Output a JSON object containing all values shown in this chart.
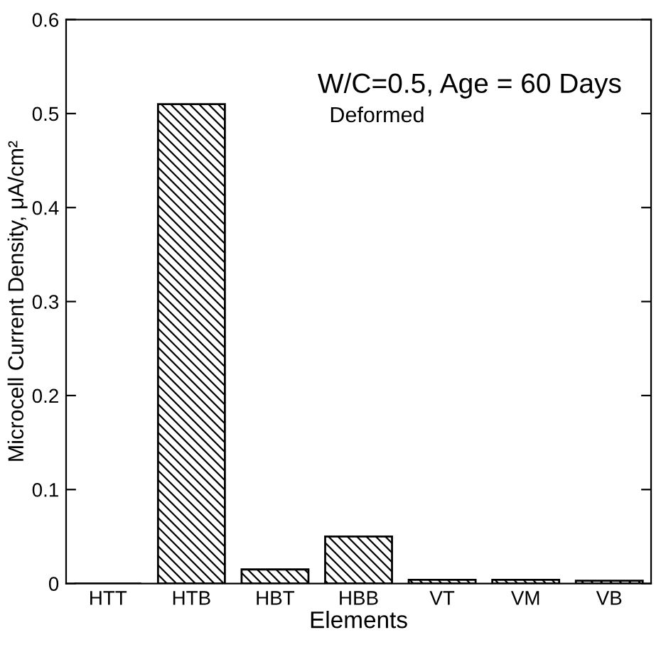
{
  "chart_data": {
    "type": "bar",
    "xlabel": "Elements",
    "ylabel": "Microcell Current Density, μA/cm²",
    "annotations": [
      "W/C=0.5, Age = 60 Days",
      "Deformed"
    ],
    "categories": [
      "HTT",
      "HTB",
      "HBT",
      "HBB",
      "VT",
      "VM",
      "VB"
    ],
    "series": [
      {
        "color": "#000000",
        "values": [
          0,
          0.51,
          0.015,
          0.05,
          0.004,
          0.004,
          0.003
        ]
      }
    ],
    "ylim": [
      0,
      0.6
    ],
    "yticks": [
      0,
      0.1,
      0.2,
      0.3,
      0.4,
      0.5,
      0.6
    ],
    "grid": false,
    "legend": false
  }
}
